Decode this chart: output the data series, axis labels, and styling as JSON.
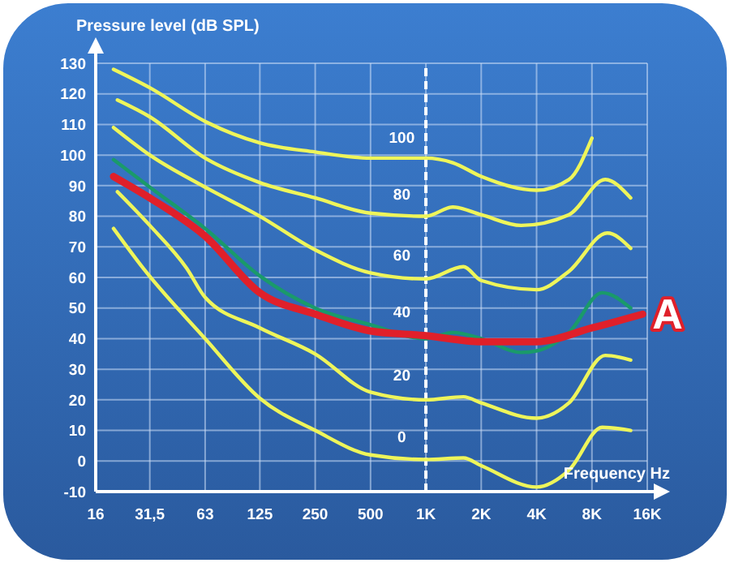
{
  "chart_data": {
    "type": "line",
    "ylabel": "Pressure level (dB SPL)",
    "xlabel": "Frequency Hz",
    "log": "x",
    "xlim": [
      16,
      16000
    ],
    "xticks": [
      16,
      {
        "value": 31.5,
        "label": "31,5"
      },
      63,
      125,
      250,
      500,
      {
        "value": 1000,
        "label": "1K"
      },
      {
        "value": 2000,
        "label": "2K"
      },
      {
        "value": 4000,
        "label": "4K"
      },
      {
        "value": 8000,
        "label": "8K"
      },
      {
        "value": 16000,
        "label": "16K"
      }
    ],
    "ylim": [
      -10,
      130
    ],
    "yticks": [
      -10,
      0,
      10,
      20,
      30,
      40,
      50,
      60,
      70,
      80,
      90,
      100,
      110,
      120,
      130
    ],
    "grid": true,
    "line_style": "solid",
    "series": [
      {
        "name": "100",
        "color": "#eef55a",
        "x": [
          20,
          31.5,
          63,
          125,
          250,
          500,
          1000,
          1400,
          2000,
          4000,
          6000,
          8000
        ],
        "values": [
          128,
          122,
          111,
          104,
          101,
          99,
          99,
          97.5,
          93,
          88.5,
          92,
          105.5
        ]
      },
      {
        "name": "80",
        "color": "#eef55a",
        "x": [
          21,
          31.5,
          63,
          125,
          250,
          500,
          1000,
          1400,
          2000,
          3300,
          6000,
          9450,
          13000
        ],
        "values": [
          118,
          112.5,
          99,
          91,
          86,
          81,
          80,
          83,
          80.5,
          77,
          80.5,
          92,
          86
        ]
      },
      {
        "name": "60",
        "color": "#eef55a",
        "x": [
          20,
          31.5,
          63,
          125,
          250,
          500,
          1000,
          1600,
          2000,
          4000,
          6000,
          9700,
          13000
        ],
        "values": [
          109,
          100,
          89.5,
          80,
          69,
          61.5,
          59.5,
          63.5,
          59,
          56,
          62,
          74.5,
          69.5
        ]
      },
      {
        "name": "40",
        "color": "#1a9a6a",
        "x": [
          20,
          31.5,
          63,
          125,
          250,
          500,
          1000,
          1400,
          2000,
          3300,
          4000,
          6000,
          9100,
          13000
        ],
        "values": [
          98.5,
          89.5,
          76,
          60.5,
          50,
          44.5,
          40,
          42,
          40,
          35.5,
          36,
          42,
          55,
          50
        ]
      },
      {
        "name": "20",
        "color": "#eef55a",
        "x": [
          21,
          31.5,
          50,
          63,
          125,
          250,
          500,
          1000,
          1600,
          2000,
          4000,
          6000,
          9450,
          13000
        ],
        "values": [
          88,
          77,
          63,
          53.5,
          43.5,
          35,
          22.5,
          20,
          21,
          19,
          14,
          19,
          34.5,
          33
        ]
      },
      {
        "name": "0",
        "color": "#eef55a",
        "x": [
          20,
          29,
          63,
          125,
          250,
          500,
          1000,
          1600,
          2000,
          4000,
          6000,
          9100,
          13000
        ],
        "values": [
          76,
          63,
          40,
          20.5,
          10,
          2,
          0.5,
          1,
          -1.5,
          -8.5,
          -3,
          11,
          10
        ]
      },
      {
        "name": "A",
        "color": "#e0202a",
        "x": [
          20,
          31.5,
          63,
          125,
          250,
          500,
          1000,
          2000,
          4000,
          8000,
          15100
        ],
        "values": [
          93,
          86,
          73.5,
          55,
          48,
          42.5,
          41,
          39,
          39,
          43.5,
          48
        ]
      }
    ],
    "ref_lines": [
      {
        "axis": "x",
        "value": 1000,
        "color": "#ffffff",
        "line_style": "dashed"
      }
    ]
  }
}
